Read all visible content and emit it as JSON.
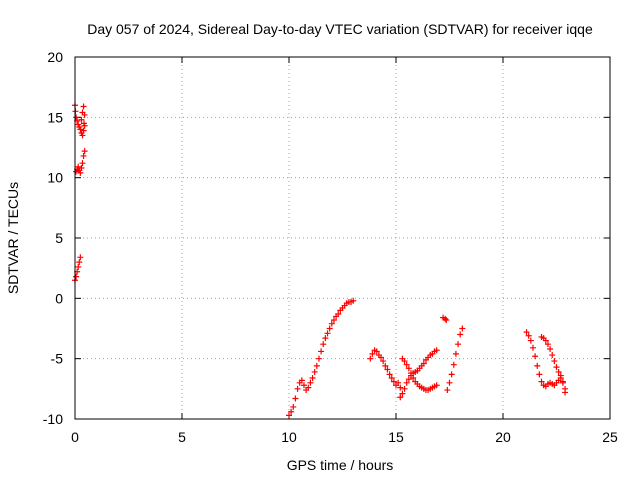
{
  "chart_data": {
    "type": "scatter",
    "title": "Day 057 of 2024, Sidereal Day-to-day VTEC variation (SDTVAR) for receiver iqqe",
    "xlabel": "GPS time / hours",
    "ylabel": "SDTVAR / TECUs",
    "xlim": [
      0,
      25
    ],
    "ylim": [
      -10,
      20
    ],
    "grid": true,
    "marker": "plus",
    "color": "#ff0000",
    "xticks": [
      "0",
      "5",
      "10",
      "15",
      "20",
      "25"
    ],
    "yticks": [
      "-10",
      "-5",
      "0",
      "5",
      "10",
      "15",
      "20"
    ],
    "series": [
      {
        "name": "SDTVAR",
        "segments": [
          {
            "x": [
              0.0,
              0.05,
              0.1,
              0.15,
              0.2,
              0.25
            ],
            "y": [
              1.5,
              1.8,
              2.2,
              2.6,
              3.0,
              3.4
            ]
          },
          {
            "x": [
              0.0,
              0.02,
              0.05,
              0.1,
              0.15,
              0.2,
              0.25,
              0.3,
              0.35,
              0.4,
              0.45
            ],
            "y": [
              16.0,
              15.5,
              15.0,
              14.7,
              14.4,
              14.2,
              14.0,
              13.7,
              13.5,
              13.9,
              14.3
            ]
          },
          {
            "x": [
              0.3,
              0.35,
              0.4,
              0.45,
              0.42
            ],
            "y": [
              14.8,
              15.4,
              15.9,
              15.2,
              14.5
            ]
          },
          {
            "x": [
              0.05,
              0.1,
              0.15,
              0.2,
              0.25,
              0.3,
              0.35,
              0.4,
              0.45
            ],
            "y": [
              10.5,
              10.7,
              10.9,
              10.6,
              10.4,
              10.8,
              11.2,
              11.8,
              12.2
            ]
          },
          {
            "x": [
              10.0,
              10.1,
              10.2,
              10.3,
              10.4,
              10.5,
              10.6,
              10.7,
              10.8,
              10.9,
              11.0,
              11.1,
              11.2,
              11.3,
              11.4,
              11.5,
              11.6,
              11.7,
              11.8,
              11.9,
              12.0,
              12.1,
              12.2,
              12.3,
              12.4,
              12.5,
              12.6,
              12.7,
              12.8,
              12.9,
              13.0
            ],
            "y": [
              -9.7,
              -9.4,
              -9.0,
              -8.3,
              -7.5,
              -7.0,
              -6.8,
              -7.2,
              -7.6,
              -7.4,
              -7.0,
              -6.6,
              -6.1,
              -5.6,
              -5.0,
              -4.4,
              -3.8,
              -3.3,
              -2.9,
              -2.5,
              -2.1,
              -1.8,
              -1.5,
              -1.3,
              -1.0,
              -0.8,
              -0.6,
              -0.4,
              -0.3,
              -0.3,
              -0.2
            ]
          },
          {
            "x": [
              13.8,
              13.9,
              14.0,
              14.1,
              14.2,
              14.3,
              14.4,
              14.5,
              14.6,
              14.7,
              14.8,
              14.9,
              15.0,
              15.1,
              15.2
            ],
            "y": [
              -5.0,
              -4.6,
              -4.3,
              -4.4,
              -4.7,
              -4.9,
              -5.2,
              -5.6,
              -5.9,
              -6.3,
              -6.6,
              -6.9,
              -7.2,
              -7.0,
              -7.4
            ]
          },
          {
            "x": [
              15.2,
              15.3,
              15.4,
              15.5,
              15.6,
              15.7,
              15.8,
              15.9,
              16.0,
              16.1,
              16.2,
              16.3,
              16.4,
              16.5,
              16.6,
              16.7,
              16.8,
              16.9
            ],
            "y": [
              -8.2,
              -7.9,
              -7.5,
              -7.0,
              -6.7,
              -6.4,
              -6.2,
              -6.1,
              -6.0,
              -5.8,
              -5.6,
              -5.4,
              -5.1,
              -4.9,
              -4.7,
              -4.6,
              -4.4,
              -4.3
            ]
          },
          {
            "x": [
              15.3,
              15.4,
              15.5,
              15.6,
              15.7,
              15.8,
              15.9,
              16.0,
              16.1,
              16.2,
              16.3,
              16.4,
              16.5,
              16.6,
              16.7,
              16.8,
              16.9
            ],
            "y": [
              -5.0,
              -5.2,
              -5.5,
              -5.8,
              -6.2,
              -6.6,
              -6.9,
              -7.1,
              -7.3,
              -7.4,
              -7.5,
              -7.6,
              -7.6,
              -7.5,
              -7.4,
              -7.3,
              -7.2
            ]
          },
          {
            "x": [
              17.2,
              17.3,
              17.35
            ],
            "y": [
              -1.6,
              -1.7,
              -1.8
            ]
          },
          {
            "x": [
              17.4,
              17.5,
              17.6,
              17.7,
              17.8,
              17.9,
              18.0,
              18.1
            ],
            "y": [
              -7.6,
              -7.0,
              -6.3,
              -5.5,
              -4.6,
              -3.8,
              -3.0,
              -2.5
            ]
          },
          {
            "x": [
              21.1,
              21.2,
              21.3,
              21.4,
              21.5,
              21.6,
              21.7,
              21.8,
              21.9,
              22.0,
              22.1,
              22.2,
              22.3,
              22.4,
              22.5,
              22.6,
              22.7,
              22.8,
              22.9
            ],
            "y": [
              -2.8,
              -3.1,
              -3.5,
              -4.1,
              -4.8,
              -5.6,
              -6.3,
              -6.9,
              -7.2,
              -7.3,
              -7.1,
              -7.0,
              -7.1,
              -7.2,
              -7.0,
              -6.8,
              -6.6,
              -7.0,
              -7.5
            ]
          },
          {
            "x": [
              21.8,
              21.9,
              22.0,
              22.1,
              22.2,
              22.3,
              22.4,
              22.5,
              22.6,
              22.7,
              22.8,
              22.9
            ],
            "y": [
              -3.2,
              -3.3,
              -3.5,
              -3.8,
              -4.2,
              -4.7,
              -5.2,
              -5.7,
              -6.1,
              -6.4,
              -6.9,
              -7.8
            ]
          }
        ]
      }
    ]
  }
}
